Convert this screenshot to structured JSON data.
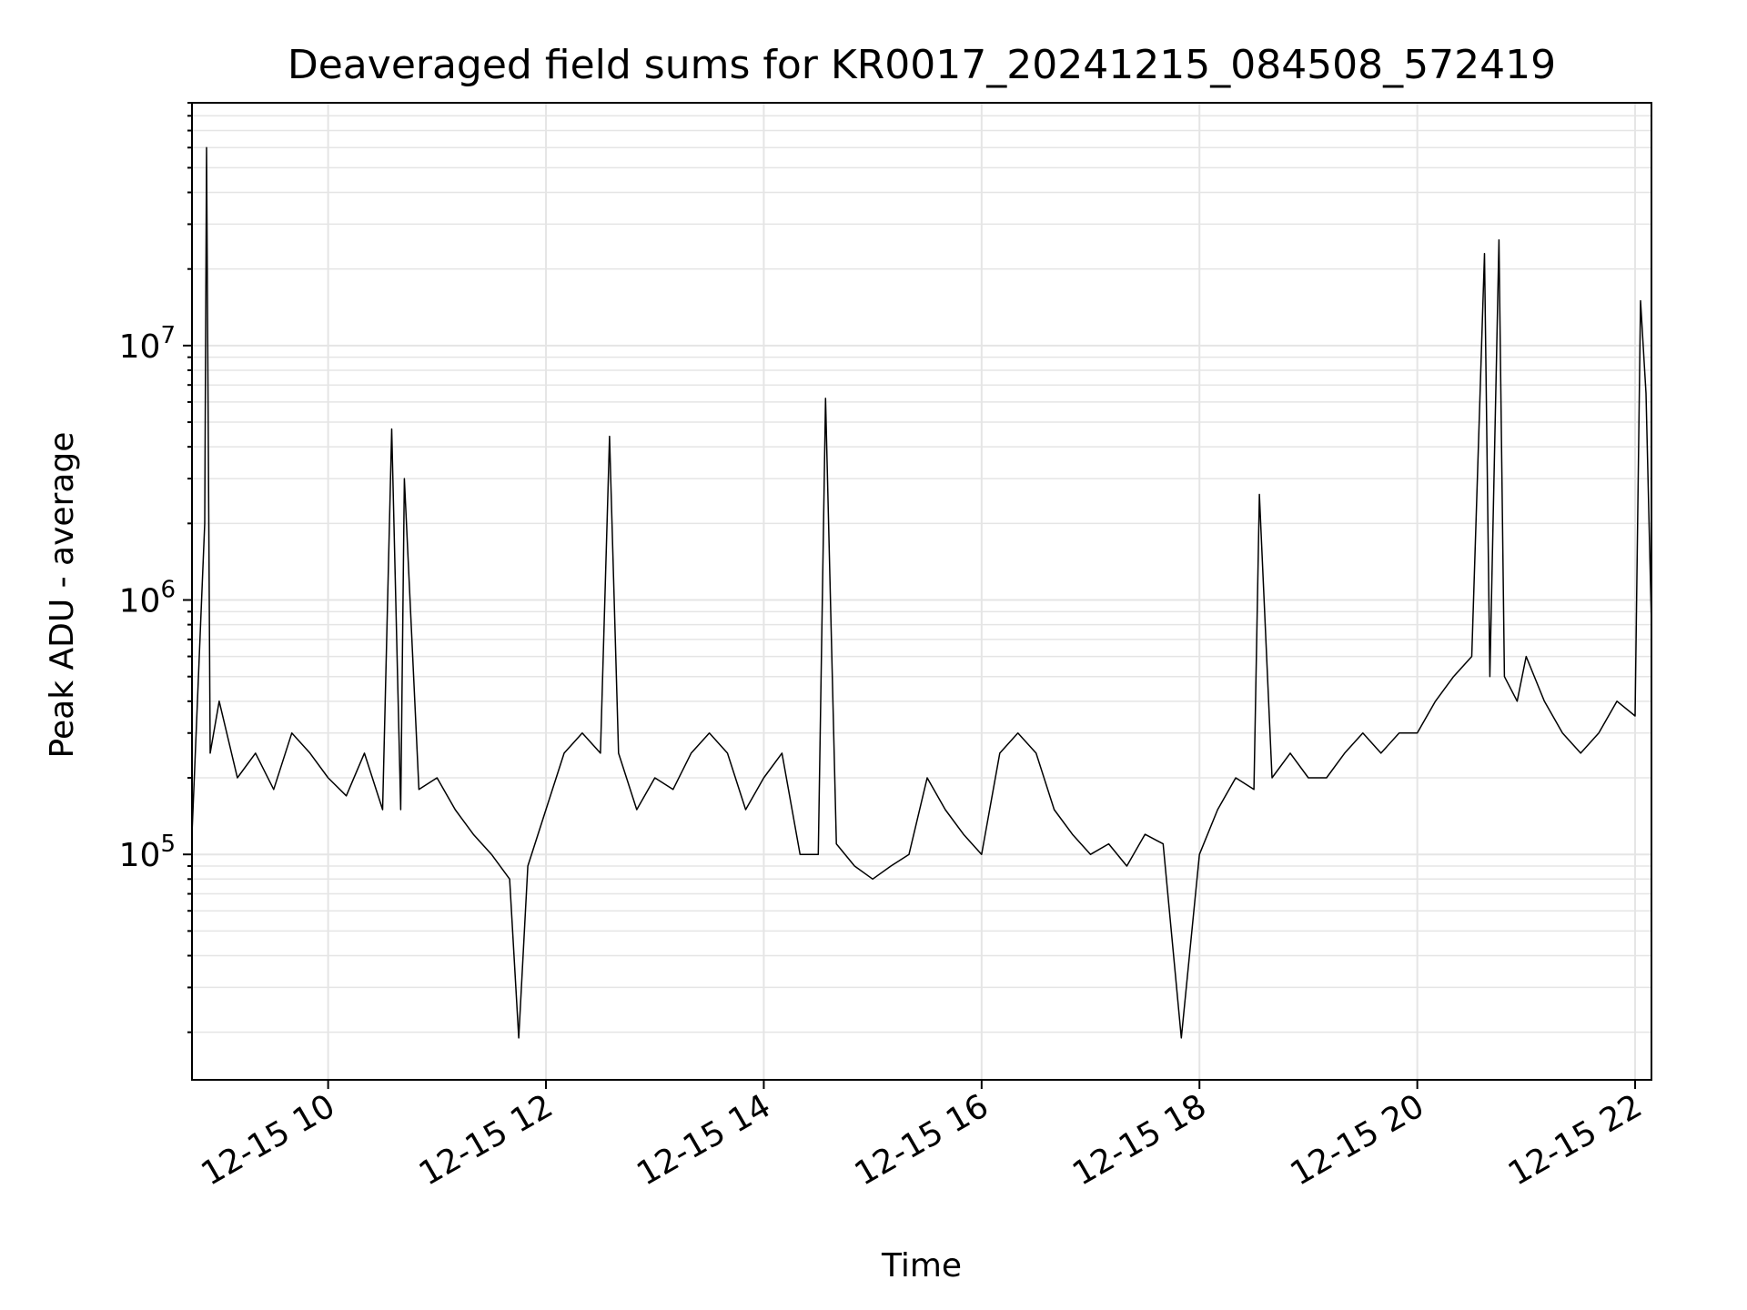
{
  "chart_data": {
    "type": "line",
    "title": "Deaveraged field sums for KR0017_20241215_084508_572419",
    "xlabel": "Time",
    "ylabel": "Peak ADU - average",
    "x_scale": "time",
    "y_scale": "log",
    "xlim": [
      "2024-12-15 08:45",
      "2024-12-15 22:09"
    ],
    "ylim": [
      13000,
      90000000
    ],
    "x_ticks": [
      {
        "label": "12-15 10",
        "time": "2024-12-15 10:00"
      },
      {
        "label": "12-15 12",
        "time": "2024-12-15 12:00"
      },
      {
        "label": "12-15 14",
        "time": "2024-12-15 14:00"
      },
      {
        "label": "12-15 16",
        "time": "2024-12-15 16:00"
      },
      {
        "label": "12-15 18",
        "time": "2024-12-15 18:00"
      },
      {
        "label": "12-15 20",
        "time": "2024-12-15 20:00"
      },
      {
        "label": "12-15 22",
        "time": "2024-12-15 22:00"
      }
    ],
    "y_ticks": [
      {
        "base": "10",
        "exp": "5",
        "value": 100000
      },
      {
        "base": "10",
        "exp": "6",
        "value": 1000000
      },
      {
        "base": "10",
        "exp": "7",
        "value": 10000000
      }
    ],
    "grid": true,
    "line_color": "#000000",
    "series": [
      {
        "x": [
          "2024-12-15 08:45",
          "2024-12-15 08:52",
          "2024-12-15 08:53",
          "2024-12-15 08:55",
          "2024-12-15 09:00",
          "2024-12-15 09:10",
          "2024-12-15 09:20",
          "2024-12-15 09:30",
          "2024-12-15 09:40",
          "2024-12-15 09:50",
          "2024-12-15 10:00",
          "2024-12-15 10:10",
          "2024-12-15 10:20",
          "2024-12-15 10:30",
          "2024-12-15 10:35",
          "2024-12-15 10:40",
          "2024-12-15 10:42",
          "2024-12-15 10:50",
          "2024-12-15 11:00",
          "2024-12-15 11:10",
          "2024-12-15 11:20",
          "2024-12-15 11:30",
          "2024-12-15 11:40",
          "2024-12-15 11:45",
          "2024-12-15 11:50",
          "2024-12-15 12:00",
          "2024-12-15 12:10",
          "2024-12-15 12:20",
          "2024-12-15 12:30",
          "2024-12-15 12:35",
          "2024-12-15 12:40",
          "2024-12-15 12:50",
          "2024-12-15 13:00",
          "2024-12-15 13:10",
          "2024-12-15 13:20",
          "2024-12-15 13:30",
          "2024-12-15 13:40",
          "2024-12-15 13:50",
          "2024-12-15 14:00",
          "2024-12-15 14:10",
          "2024-12-15 14:20",
          "2024-12-15 14:30",
          "2024-12-15 14:34",
          "2024-12-15 14:40",
          "2024-12-15 14:50",
          "2024-12-15 15:00",
          "2024-12-15 15:10",
          "2024-12-15 15:20",
          "2024-12-15 15:30",
          "2024-12-15 15:40",
          "2024-12-15 15:50",
          "2024-12-15 16:00",
          "2024-12-15 16:10",
          "2024-12-15 16:20",
          "2024-12-15 16:30",
          "2024-12-15 16:40",
          "2024-12-15 16:50",
          "2024-12-15 17:00",
          "2024-12-15 17:10",
          "2024-12-15 17:20",
          "2024-12-15 17:30",
          "2024-12-15 17:40",
          "2024-12-15 17:50",
          "2024-12-15 18:00",
          "2024-12-15 18:10",
          "2024-12-15 18:20",
          "2024-12-15 18:30",
          "2024-12-15 18:33",
          "2024-12-15 18:40",
          "2024-12-15 18:50",
          "2024-12-15 19:00",
          "2024-12-15 19:10",
          "2024-12-15 19:20",
          "2024-12-15 19:30",
          "2024-12-15 19:40",
          "2024-12-15 19:50",
          "2024-12-15 20:00",
          "2024-12-15 20:10",
          "2024-12-15 20:20",
          "2024-12-15 20:30",
          "2024-12-15 20:37",
          "2024-12-15 20:40",
          "2024-12-15 20:45",
          "2024-12-15 20:48",
          "2024-12-15 20:55",
          "2024-12-15 21:00",
          "2024-12-15 21:10",
          "2024-12-15 21:20",
          "2024-12-15 21:30",
          "2024-12-15 21:40",
          "2024-12-15 21:50",
          "2024-12-15 22:00",
          "2024-12-15 22:03",
          "2024-12-15 22:06",
          "2024-12-15 22:09"
        ],
        "y": [
          120000,
          2000000,
          60000000,
          250000,
          400000,
          200000,
          250000,
          180000,
          300000,
          250000,
          200000,
          170000,
          250000,
          150000,
          4700000,
          150000,
          3000000,
          180000,
          200000,
          150000,
          120000,
          100000,
          80000,
          19000,
          90000,
          150000,
          250000,
          300000,
          250000,
          4400000,
          250000,
          150000,
          200000,
          180000,
          250000,
          300000,
          250000,
          150000,
          200000,
          250000,
          100000,
          100000,
          6200000,
          110000,
          90000,
          80000,
          90000,
          100000,
          200000,
          150000,
          120000,
          100000,
          250000,
          300000,
          250000,
          150000,
          120000,
          100000,
          110000,
          90000,
          120000,
          110000,
          19000,
          100000,
          150000,
          200000,
          180000,
          2600000,
          200000,
          250000,
          200000,
          200000,
          250000,
          300000,
          250000,
          300000,
          300000,
          400000,
          500000,
          600000,
          23000000,
          500000,
          26000000,
          500000,
          400000,
          600000,
          400000,
          300000,
          250000,
          300000,
          400000,
          350000,
          15000000,
          6500000,
          800000
        ]
      }
    ]
  }
}
